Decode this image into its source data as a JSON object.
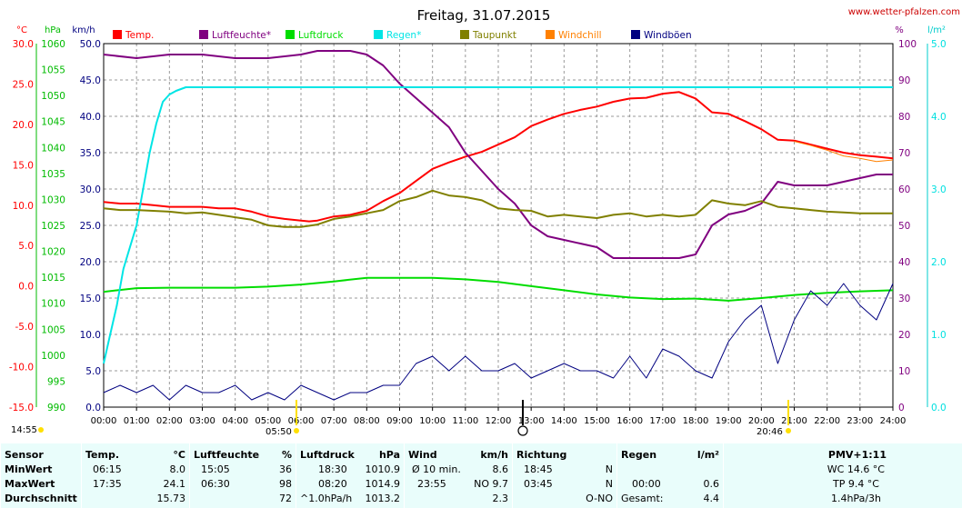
{
  "site": "www.wetter-pfalzen.com",
  "chart_data": {
    "type": "line",
    "title": "Freitag, 31.07.2015",
    "x_ticks": [
      "00:00",
      "01:00",
      "02:00",
      "03:00",
      "04:00",
      "05:00",
      "06:00",
      "07:00",
      "08:00",
      "09:00",
      "10:00",
      "11:00",
      "12:00",
      "13:00",
      "14:00",
      "15:00",
      "16:00",
      "17:00",
      "18:00",
      "19:00",
      "20:00",
      "21:00",
      "22:00",
      "23:00",
      "24:00"
    ],
    "xlim": [
      0,
      24
    ],
    "grid": true,
    "legend_position": "top",
    "axes": {
      "temp": {
        "unit": "°C",
        "ticks": [
          "30.0",
          "25.0",
          "20.0",
          "15.0",
          "10.0",
          "5.0",
          "0.0",
          "-5.0",
          "-10.0",
          "-15.0"
        ],
        "range": [
          -15,
          30
        ],
        "color": "#ff0000"
      },
      "pressure": {
        "unit": "hPa",
        "ticks": [
          "1060",
          "1055",
          "1050",
          "1045",
          "1040",
          "1035",
          "1030",
          "1025",
          "1020",
          "1015",
          "1010",
          "1005",
          "1000",
          "995",
          "990"
        ],
        "range": [
          990,
          1060
        ],
        "color": "#00bb00"
      },
      "wind": {
        "unit": "km/h",
        "ticks": [
          "50.0",
          "45.0",
          "40.0",
          "35.0",
          "30.0",
          "25.0",
          "20.0",
          "15.0",
          "10.0",
          "5.0",
          "0.0"
        ],
        "range": [
          0,
          50
        ],
        "color": "#000080"
      },
      "humidity": {
        "unit": "%",
        "ticks": [
          "100",
          "90",
          "80",
          "70",
          "60",
          "50",
          "40",
          "30",
          "20",
          "10",
          "0"
        ],
        "range": [
          0,
          100
        ],
        "color": "#800080"
      },
      "rain": {
        "unit": "l/m²",
        "ticks": [
          "5.0",
          "4.0",
          "3.0",
          "2.0",
          "1.0",
          "0.0"
        ],
        "range": [
          0,
          5
        ],
        "color": "#00e0e0"
      }
    },
    "sun_markers": {
      "sunrise": "05:50",
      "sunset": "20:46",
      "left_start": "14:55"
    },
    "series": [
      {
        "name": "Temp.",
        "color": "#ff0000",
        "axis": "temp",
        "x": [
          0,
          0.5,
          1,
          1.5,
          2,
          2.5,
          3,
          3.5,
          4,
          4.5,
          5,
          5.5,
          6,
          6.25,
          6.5,
          7,
          7.5,
          8,
          8.5,
          9,
          9.5,
          10,
          10.5,
          11,
          11.5,
          12,
          12.5,
          13,
          13.5,
          14,
          14.5,
          15,
          15.5,
          16,
          16.5,
          17,
          17.5,
          18,
          18.5,
          19,
          19.5,
          20,
          20.5,
          21,
          21.5,
          22,
          22.5,
          23,
          23.5,
          24
        ],
        "y": [
          10.4,
          10.2,
          10.2,
          10.0,
          9.8,
          9.8,
          9.8,
          9.6,
          9.6,
          9.2,
          8.6,
          8.3,
          8.1,
          8.0,
          8.1,
          8.6,
          8.8,
          9.3,
          10.5,
          11.5,
          13.0,
          14.5,
          15.3,
          16.0,
          16.6,
          17.5,
          18.4,
          19.8,
          20.6,
          21.3,
          21.8,
          22.2,
          22.8,
          23.2,
          23.3,
          23.8,
          24.0,
          23.2,
          21.5,
          21.3,
          20.4,
          19.4,
          18.1,
          18.0,
          17.5,
          17.0,
          16.5,
          16.2,
          16.0,
          15.8
        ]
      },
      {
        "name": "Luftfeuchte*",
        "color": "#800080",
        "axis": "humidity",
        "x": [
          0,
          1,
          2,
          3,
          4,
          5,
          6,
          6.5,
          7,
          7.5,
          8,
          8.5,
          9,
          9.5,
          10,
          10.5,
          11,
          11.5,
          12,
          12.5,
          13,
          13.5,
          14,
          14.5,
          15,
          15.5,
          16,
          16.5,
          17,
          17.5,
          18,
          18.5,
          19,
          19.5,
          20,
          20.5,
          21,
          21.5,
          22,
          22.5,
          23,
          23.5,
          24
        ],
        "y": [
          97,
          96,
          97,
          97,
          96,
          96,
          97,
          98,
          98,
          98,
          97,
          94,
          89,
          85,
          81,
          77,
          70,
          65,
          60,
          56,
          50,
          47,
          46,
          45,
          44,
          41,
          41,
          41,
          41,
          41,
          42,
          50,
          53,
          54,
          56,
          62,
          61,
          61,
          61,
          62,
          63,
          64,
          64
        ]
      },
      {
        "name": "Luftdruck",
        "color": "#00dd00",
        "axis": "pressure",
        "x": [
          0,
          1,
          2,
          3,
          4,
          5,
          6,
          7,
          8,
          9,
          10,
          11,
          12,
          13,
          14,
          15,
          16,
          17,
          18,
          19,
          20,
          21,
          22,
          23,
          24
        ],
        "y": [
          1012.2,
          1012.9,
          1013.0,
          1013.0,
          1013.0,
          1013.2,
          1013.6,
          1014.2,
          1014.9,
          1014.9,
          1014.9,
          1014.6,
          1014.1,
          1013.3,
          1012.5,
          1011.7,
          1011.1,
          1010.8,
          1010.9,
          1010.5,
          1011.0,
          1011.6,
          1012.0,
          1012.3,
          1012.5
        ]
      },
      {
        "name": "Regen*",
        "color": "#00e5e5",
        "axis": "rain",
        "x": [
          0,
          0.2,
          0.4,
          0.6,
          0.8,
          1,
          1.2,
          1.4,
          1.6,
          1.8,
          2,
          2.2,
          2.5,
          3,
          24
        ],
        "y": [
          0.6,
          1.0,
          1.4,
          1.9,
          2.2,
          2.5,
          3.0,
          3.5,
          3.9,
          4.2,
          4.3,
          4.35,
          4.4,
          4.4,
          4.4
        ]
      },
      {
        "name": "Taupunkt",
        "color": "#808000",
        "axis": "temp",
        "x": [
          0,
          0.5,
          1,
          1.5,
          2,
          2.5,
          3,
          3.5,
          4,
          4.5,
          5,
          5.5,
          6,
          6.5,
          7,
          7.5,
          8,
          8.5,
          9,
          9.5,
          10,
          10.5,
          11,
          11.5,
          12,
          12.5,
          13,
          13.5,
          14,
          14.5,
          15,
          15.5,
          16,
          16.5,
          17,
          17.5,
          18,
          18.5,
          19,
          19.5,
          20,
          20.5,
          21,
          21.5,
          22,
          22.5,
          23,
          23.5,
          24
        ],
        "y": [
          9.6,
          9.4,
          9.4,
          9.3,
          9.2,
          9.0,
          9.1,
          8.8,
          8.5,
          8.2,
          7.5,
          7.3,
          7.3,
          7.6,
          8.3,
          8.6,
          9.0,
          9.4,
          10.5,
          11.0,
          11.8,
          11.2,
          11.0,
          10.6,
          9.6,
          9.4,
          9.3,
          8.6,
          8.8,
          8.6,
          8.4,
          8.8,
          9.0,
          8.6,
          8.8,
          8.6,
          8.8,
          10.6,
          10.2,
          10.0,
          10.5,
          9.8,
          9.6,
          9.4,
          9.2,
          9.1,
          9.0,
          9.0,
          9.0
        ]
      },
      {
        "name": "Windchill",
        "color": "#ff8000",
        "axis": "temp",
        "x": [
          21,
          21.5,
          22,
          22.5,
          23,
          23.5,
          24
        ],
        "y": [
          17.9,
          17.4,
          16.8,
          16.1,
          15.8,
          15.4,
          15.6
        ]
      },
      {
        "name": "Windböen",
        "color": "#000080",
        "axis": "wind",
        "x": [
          0,
          0.5,
          1,
          1.5,
          2,
          2.5,
          3,
          3.5,
          4,
          4.5,
          5,
          5.5,
          6,
          6.5,
          7,
          7.5,
          8,
          8.5,
          9,
          9.5,
          10,
          10.5,
          11,
          11.5,
          12,
          12.5,
          13,
          13.5,
          14,
          14.5,
          15,
          15.5,
          16,
          16.5,
          17,
          17.5,
          18,
          18.5,
          19,
          19.5,
          20,
          20.5,
          21,
          21.5,
          22,
          22.5,
          23,
          23.5,
          24
        ],
        "y": [
          2,
          3,
          2,
          3,
          1,
          3,
          2,
          2,
          3,
          1,
          2,
          1,
          3,
          2,
          1,
          2,
          2,
          3,
          3,
          6,
          7,
          5,
          7,
          5,
          5,
          6,
          4,
          5,
          6,
          5,
          5,
          4,
          7,
          4,
          8,
          7,
          5,
          4,
          9,
          12,
          14,
          6,
          12,
          16,
          14,
          17,
          14,
          12,
          17
        ]
      }
    ]
  },
  "summary": {
    "sensor": {
      "header": "Sensor",
      "rows": [
        "MinWert",
        "MaxWert",
        "Durchschnitt"
      ]
    },
    "temp": {
      "header": "Temp.",
      "unit": "°C",
      "times": [
        "06:15",
        "17:35",
        ""
      ],
      "values": [
        "8.0",
        "24.1",
        "15.73"
      ]
    },
    "humidity": {
      "header": "Luftfeuchte",
      "unit": "%",
      "times": [
        "15:05",
        "06:30",
        ""
      ],
      "values": [
        "36",
        "98",
        "72"
      ]
    },
    "pressure": {
      "header": "Luftdruck",
      "unit": "hPa",
      "times": [
        "18:30",
        "08:20",
        "^1.0hPa/h"
      ],
      "values": [
        "1010.9",
        "1014.9",
        "1013.2"
      ]
    },
    "wind": {
      "header": "Wind",
      "unit": "km/h",
      "labels": [
        "Ø 10 min.",
        "23:55",
        ""
      ],
      "values": [
        "8.6",
        "NO 9.7",
        "2.3"
      ]
    },
    "direction": {
      "header": "Richtung",
      "times": [
        "18:45",
        "03:45",
        ""
      ],
      "values": [
        "N",
        "N",
        "O-NO"
      ]
    },
    "rain": {
      "header": "Regen",
      "unit": "l/m²",
      "labels": [
        "",
        "00:00",
        "Gesamt:"
      ],
      "values": [
        "",
        "0.6",
        "4.4"
      ]
    },
    "pmv": {
      "header": "PMV+1:11",
      "values": [
        "WC 14.6 °C",
        "TP 9.4 °C",
        "1.4hPa/3h"
      ]
    }
  }
}
